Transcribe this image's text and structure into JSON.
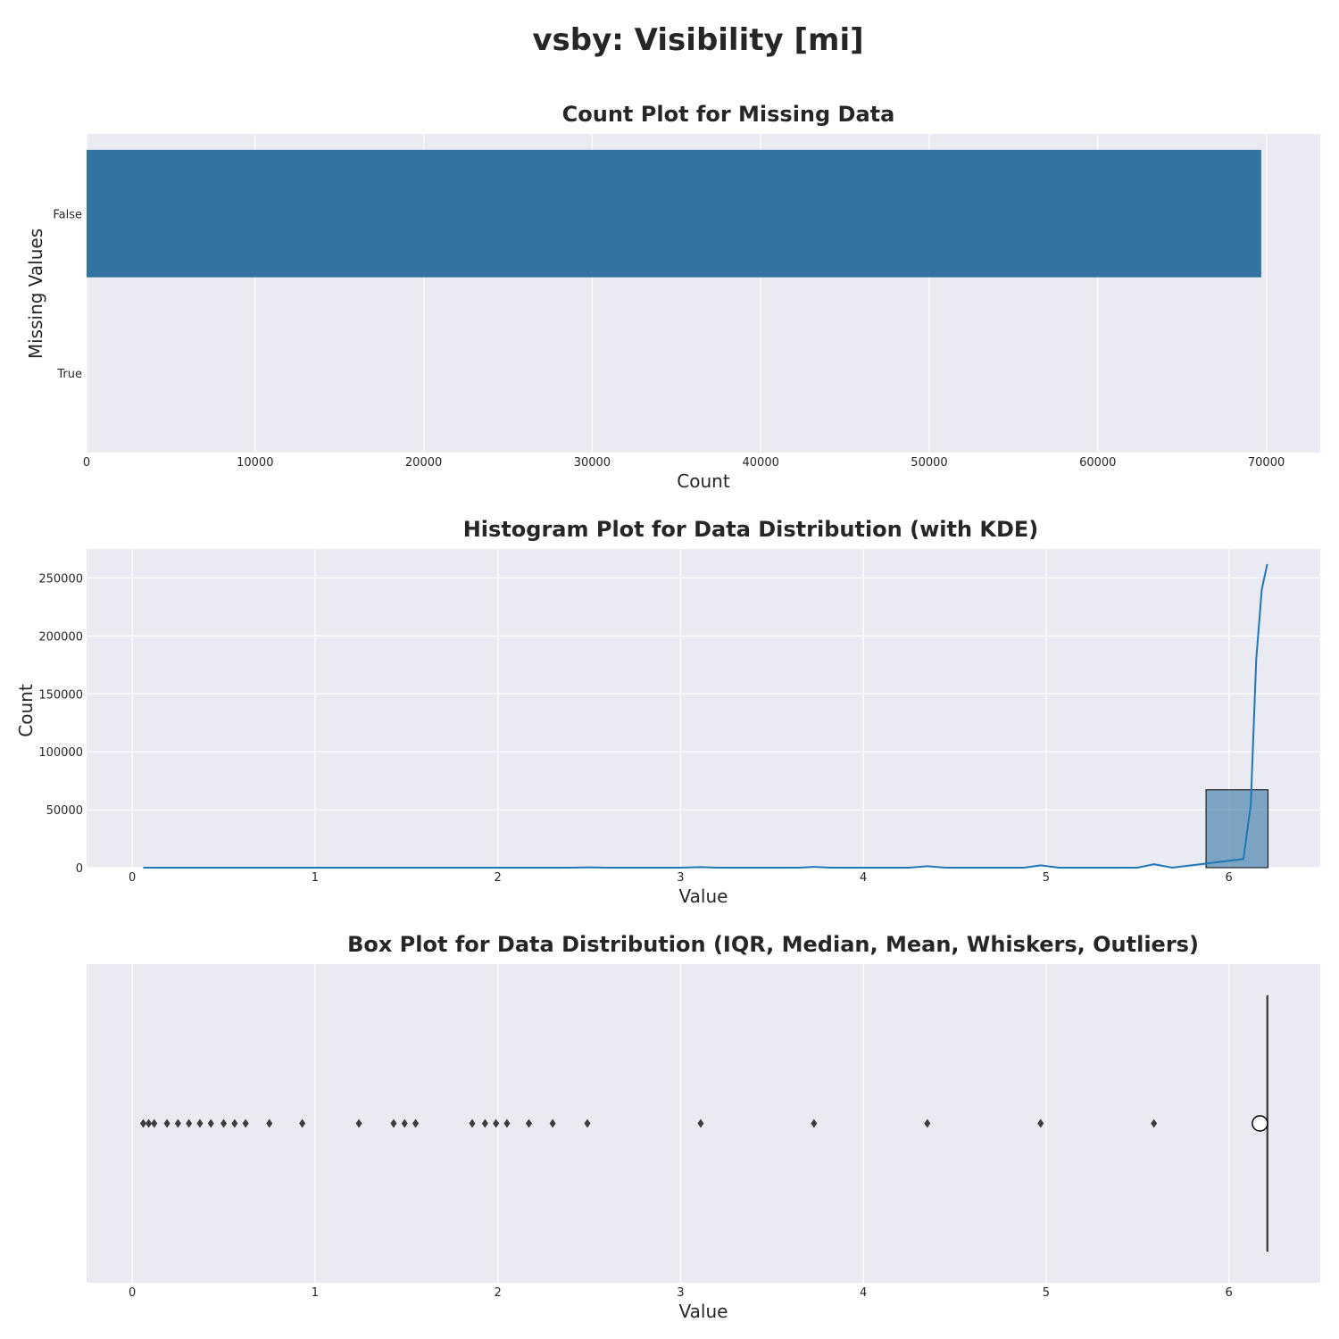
{
  "figure": {
    "title": "vsby: Visibility [mi]"
  },
  "chart_data": [
    {
      "type": "bar",
      "orientation": "horizontal",
      "title": "Count Plot for Missing Data",
      "xlabel": "Count",
      "ylabel": "Missing Values",
      "categories": [
        "False",
        "True"
      ],
      "values": [
        69700,
        0
      ],
      "xlim": [
        0,
        73200
      ],
      "xticks": [
        0,
        10000,
        20000,
        30000,
        40000,
        50000,
        60000,
        70000
      ],
      "xtick_labels": [
        "0",
        "10000",
        "20000",
        "30000",
        "40000",
        "50000",
        "60000",
        "70000"
      ],
      "grid": true,
      "bar_color": "#3274a1",
      "background": "#eaeaf2"
    },
    {
      "type": "histogram",
      "title": "Histogram Plot for Data Distribution (with KDE)",
      "xlabel": "Value",
      "ylabel": "Count",
      "xlim": [
        -0.25,
        6.5
      ],
      "ylim": [
        0,
        275000
      ],
      "xticks": [
        0,
        1,
        2,
        3,
        4,
        5,
        6
      ],
      "xtick_labels": [
        "0",
        "1",
        "2",
        "3",
        "4",
        "5",
        "6"
      ],
      "yticks": [
        0,
        50000,
        100000,
        150000,
        200000,
        250000
      ],
      "ytick_labels": [
        "0",
        "50000",
        "100000",
        "150000",
        "200000",
        "250000"
      ],
      "bins": [
        {
          "x0": 5.875,
          "x1": 6.214,
          "count": 67200
        }
      ],
      "kde": {
        "x": [
          0.06,
          2.4,
          2.5,
          2.6,
          3.0,
          3.11,
          3.2,
          3.65,
          3.73,
          3.82,
          4.25,
          4.35,
          4.45,
          4.88,
          4.97,
          5.07,
          5.5,
          5.59,
          5.69,
          6.08,
          6.12,
          6.15,
          6.18,
          6.21
        ],
        "y": [
          0,
          0,
          300,
          0,
          0,
          500,
          0,
          0,
          700,
          0,
          0,
          1200,
          0,
          0,
          2000,
          0,
          0,
          3000,
          0,
          7500,
          55000,
          180000,
          240000,
          262000
        ]
      },
      "grid": true,
      "bar_color": "#3274a1",
      "line_color": "#1f77b4",
      "background": "#eaeaf2"
    },
    {
      "type": "box",
      "title": "Box Plot for Data Distribution (IQR, Median, Mean, Whiskers, Outliers)",
      "xlabel": "Value",
      "xlim": [
        -0.25,
        6.5
      ],
      "xticks": [
        0,
        1,
        2,
        3,
        4,
        5,
        6
      ],
      "xtick_labels": [
        "0",
        "1",
        "2",
        "3",
        "4",
        "5",
        "6"
      ],
      "q1": 6.21,
      "median": 6.21,
      "q3": 6.21,
      "whisker_low": 6.21,
      "whisker_high": 6.21,
      "mean": 6.17,
      "outliers": [
        0.06,
        0.09,
        0.12,
        0.19,
        0.25,
        0.31,
        0.37,
        0.43,
        0.5,
        0.56,
        0.62,
        0.75,
        0.93,
        1.24,
        1.43,
        1.49,
        1.55,
        1.86,
        1.93,
        1.99,
        2.05,
        2.17,
        2.3,
        2.49,
        3.11,
        3.73,
        4.35,
        4.97,
        5.59
      ],
      "grid": true,
      "background": "#eaeaf2"
    }
  ]
}
